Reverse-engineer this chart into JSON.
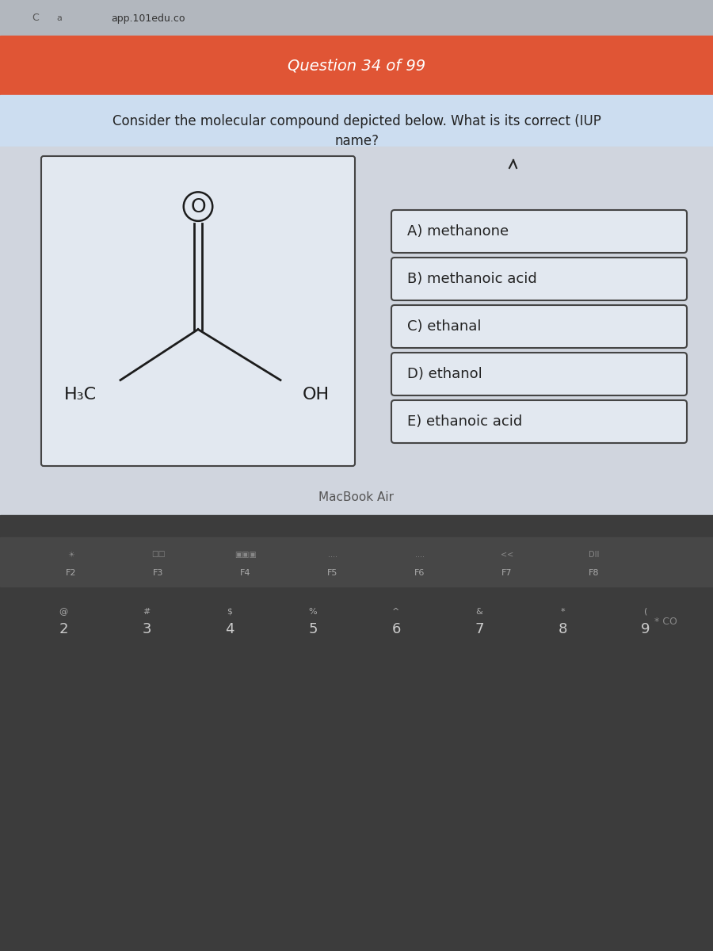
{
  "browser_bar_text": "app.101edu.co",
  "question_header": "Question 34 of 99",
  "question_line1": "Consider the molecular compound depicted below. What is its correct (IUP",
  "question_line2": "name?",
  "choices": [
    "A) methanone",
    "B) methanoic acid",
    "C) ethanal",
    "D) ethanol",
    "E) ethanoic acid"
  ],
  "mol_label_left": "H₃C",
  "mol_label_right": "OH",
  "mol_atom_top": "O",
  "header_bg": "#e05535",
  "header_text": "#ffffff",
  "question_bg": "#ccddf0",
  "body_bg": "#d0d5de",
  "box_bg": "#e2e8f0",
  "box_border": "#444444",
  "keyboard_bg": "#3c3c3c",
  "text_dark": "#222222",
  "text_mid": "#555555",
  "text_light": "#999999"
}
